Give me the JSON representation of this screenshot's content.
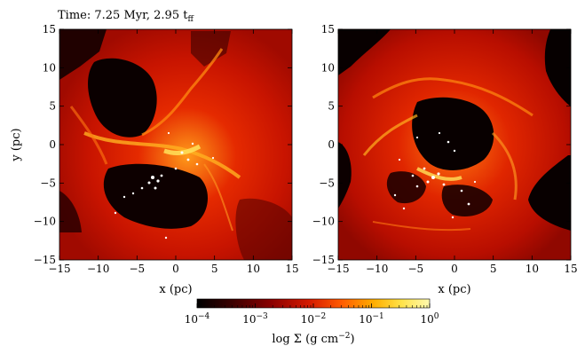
{
  "figure": {
    "time_label": "Time: 7.25 Myr, 2.95 t",
    "time_label_sub": "ff"
  },
  "panels": [
    {
      "xlabel": "x (pc)",
      "ylabel": "y (pc)",
      "xticks": [
        "−15",
        "−10",
        "−5",
        "0",
        "5",
        "10",
        "15"
      ],
      "yticks": [
        "15",
        "10",
        "5",
        "0",
        "−5",
        "−10",
        "−15"
      ],
      "xlim": [
        -15,
        15
      ],
      "ylim": [
        -15,
        15
      ]
    },
    {
      "xlabel": "x (pc)",
      "ylabel": "",
      "xticks": [
        "−15",
        "−10",
        "−5",
        "0",
        "5",
        "10",
        "15"
      ],
      "yticks": [
        "15",
        "10",
        "5",
        "0",
        "−5",
        "−10",
        "−15"
      ],
      "xlim": [
        -15,
        15
      ],
      "ylim": [
        -15,
        15
      ]
    }
  ],
  "colorbar": {
    "label": "log Σ (g cm",
    "label_sup": "−2",
    "label_close": ")",
    "ticks": [
      {
        "base": "10",
        "exp": "−4"
      },
      {
        "base": "10",
        "exp": "−3"
      },
      {
        "base": "10",
        "exp": "−2"
      },
      {
        "base": "10",
        "exp": "−1"
      },
      {
        "base": "10",
        "exp": "0"
      }
    ],
    "range": [
      -4,
      0
    ],
    "colormap": [
      "#000000",
      "#3a0000",
      "#8b0000",
      "#d41a00",
      "#ff5a00",
      "#ffae00",
      "#ffe34a",
      "#fff9b0"
    ]
  }
}
